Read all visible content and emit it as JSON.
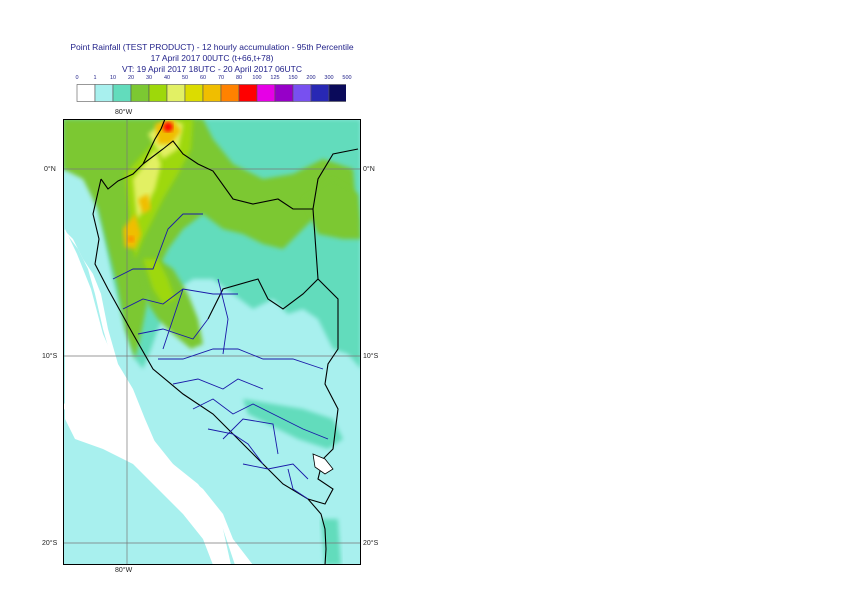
{
  "header": {
    "line1": "Point Rainfall (TEST PRODUCT) - 12 hourly accumulation - 95th Percentile",
    "line2": "17 April 2017 00UTC (t+66,t+78)",
    "line3": "VT: 19 April 2017 18UTC - 20 April 2017 06UTC"
  },
  "legend": {
    "labels": [
      "0",
      "1",
      "10",
      "20",
      "30",
      "40",
      "50",
      "60",
      "70",
      "80",
      "100",
      "125",
      "150",
      "200",
      "300",
      "500"
    ],
    "colors": [
      "#ffffff",
      "#a8f0ee",
      "#62dcbc",
      "#7cc832",
      "#9ed80a",
      "#e2f064",
      "#dcdc00",
      "#f0be00",
      "#ff8200",
      "#ff0000",
      "#e600e6",
      "#9600c8",
      "#7850f0",
      "#2828b4",
      "#0a0a5a"
    ]
  },
  "axes": {
    "lon_top": "80°W",
    "lon_bottom": "80°W",
    "lat_left": [
      "0°N",
      "10°S",
      "20°S"
    ],
    "lat_right": [
      "0°N",
      "10°S",
      "20°S"
    ]
  }
}
